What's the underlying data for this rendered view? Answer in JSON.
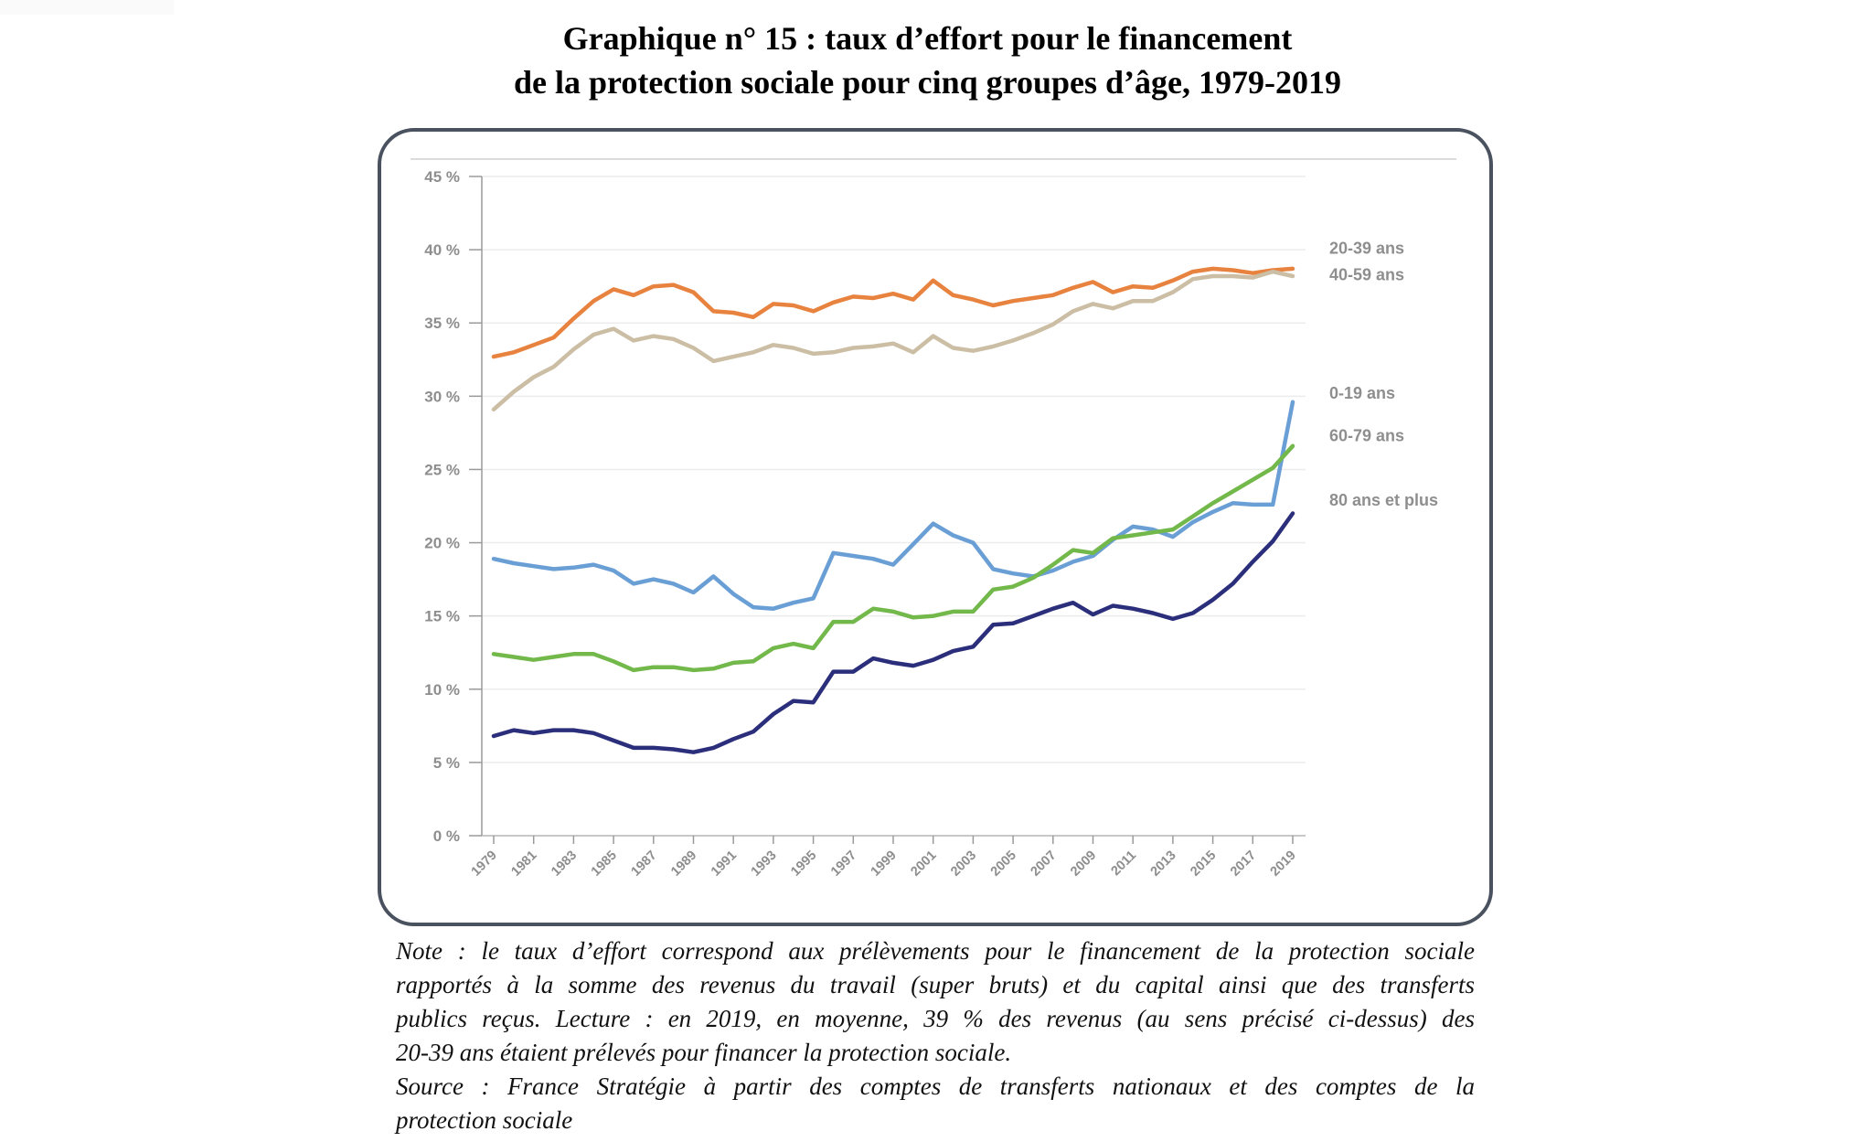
{
  "page": {
    "title_line1": "Graphique n° 15 : taux d’effort pour le financement",
    "title_line2": "de la protection sociale pour cinq groupes d’âge, 1979-2019",
    "note_lines": [
      "Note : le taux d’effort correspond aux prélèvements pour le financement de la protection sociale",
      "rapportés à la somme des revenus du travail (super bruts) et du capital ainsi que des transferts",
      "publics reçus. Lecture : en 2019, en moyenne, 39 % des revenus (au sens précisé ci-dessus) des",
      "20-39 ans étaient prélevés pour financer la protection sociale."
    ],
    "source_lines": [
      "Source : France Stratégie à partir des comptes de transferts nationaux et des comptes de la",
      "protection sociale"
    ]
  },
  "chart_data": {
    "type": "line",
    "title": "Graphique n° 15 : taux d’effort pour le financement de la protection sociale pour cinq groupes d’âge, 1979-2019",
    "xlabel": "",
    "ylabel": "",
    "ylim": [
      0,
      45
    ],
    "xlim": [
      1979,
      2019
    ],
    "grid": true,
    "legend": "right (direct labels at line ends)",
    "y_ticks": [
      0,
      5,
      10,
      15,
      20,
      25,
      30,
      35,
      40,
      45
    ],
    "y_tick_labels": [
      "0 %",
      "5 %",
      "10 %",
      "15 %",
      "20 %",
      "25 %",
      "30 %",
      "35 %",
      "40 %",
      "45 %"
    ],
    "x_tick_labels": [
      "1979",
      "1981",
      "1983",
      "1985",
      "1987",
      "1989",
      "1991",
      "1993",
      "1995",
      "1997",
      "1999",
      "2001",
      "2003",
      "2005",
      "2007",
      "2009",
      "2011",
      "2013",
      "2015",
      "2017",
      "2019"
    ],
    "x": [
      1979,
      1980,
      1981,
      1982,
      1983,
      1984,
      1985,
      1986,
      1987,
      1988,
      1989,
      1990,
      1991,
      1992,
      1993,
      1994,
      1995,
      1996,
      1997,
      1998,
      1999,
      2000,
      2001,
      2002,
      2003,
      2004,
      2005,
      2006,
      2007,
      2008,
      2009,
      2010,
      2011,
      2012,
      2013,
      2014,
      2015,
      2016,
      2017,
      2018,
      2019
    ],
    "series": [
      {
        "name": "20-39 ans",
        "color": "#e8823f",
        "values": [
          32.7,
          33.0,
          33.5,
          34.0,
          35.3,
          36.5,
          37.3,
          36.9,
          37.5,
          37.6,
          37.1,
          35.8,
          35.7,
          35.4,
          36.3,
          36.2,
          35.8,
          36.4,
          36.8,
          36.7,
          37.0,
          36.6,
          37.9,
          36.9,
          36.6,
          36.2,
          36.5,
          36.7,
          36.9,
          37.4,
          37.8,
          37.1,
          37.5,
          37.4,
          37.9,
          38.5,
          38.7,
          38.6,
          38.4,
          38.6,
          38.7
        ]
      },
      {
        "name": "40-59 ans",
        "color": "#cbbea4",
        "values": [
          29.1,
          30.3,
          31.3,
          32.0,
          33.2,
          34.2,
          34.6,
          33.8,
          34.1,
          33.9,
          33.3,
          32.4,
          32.7,
          33.0,
          33.5,
          33.3,
          32.9,
          33.0,
          33.3,
          33.4,
          33.6,
          33.0,
          34.1,
          33.3,
          33.1,
          33.4,
          33.8,
          34.3,
          34.9,
          35.8,
          36.3,
          36.0,
          36.5,
          36.5,
          37.1,
          38.0,
          38.2,
          38.2,
          38.1,
          38.5,
          38.2
        ]
      },
      {
        "name": "0-19 ans",
        "color": "#6a9fd6",
        "values": [
          18.9,
          18.6,
          18.4,
          18.2,
          18.3,
          18.5,
          18.1,
          17.2,
          17.5,
          17.2,
          16.6,
          17.7,
          16.5,
          15.6,
          15.5,
          15.9,
          16.2,
          19.3,
          19.1,
          18.9,
          18.5,
          19.9,
          21.3,
          20.5,
          20.0,
          18.2,
          17.9,
          17.7,
          18.1,
          18.7,
          19.1,
          20.2,
          21.1,
          20.9,
          20.4,
          21.4,
          22.1,
          22.7,
          22.6,
          22.6,
          29.6
        ]
      },
      {
        "name": "60-79 ans",
        "color": "#72b84a",
        "values": [
          12.4,
          12.2,
          12.0,
          12.2,
          12.4,
          12.4,
          11.9,
          11.3,
          11.5,
          11.5,
          11.3,
          11.4,
          11.8,
          11.9,
          12.8,
          13.1,
          12.8,
          14.6,
          14.6,
          15.5,
          15.3,
          14.9,
          15.0,
          15.3,
          15.3,
          16.8,
          17.0,
          17.6,
          18.5,
          19.5,
          19.3,
          20.3,
          20.5,
          20.7,
          20.9,
          21.8,
          22.7,
          23.5,
          24.3,
          25.1,
          26.6
        ]
      },
      {
        "name": "80 ans et plus",
        "color": "#2b2e7a",
        "values": [
          6.8,
          7.2,
          7.0,
          7.2,
          7.2,
          7.0,
          6.5,
          6.0,
          6.0,
          5.9,
          5.7,
          6.0,
          6.6,
          7.1,
          8.3,
          9.2,
          9.1,
          11.2,
          11.2,
          12.1,
          11.8,
          11.6,
          12.0,
          12.6,
          12.9,
          14.4,
          14.5,
          15.0,
          15.5,
          15.9,
          15.1,
          15.7,
          15.5,
          15.2,
          14.8,
          15.2,
          16.1,
          17.2,
          18.7,
          20.1,
          22.0
        ]
      }
    ],
    "series_labels_order_top_to_bottom": [
      "20-39 ans",
      "40-59 ans",
      "0-19 ans",
      "60-79 ans",
      "80 ans et plus"
    ]
  }
}
